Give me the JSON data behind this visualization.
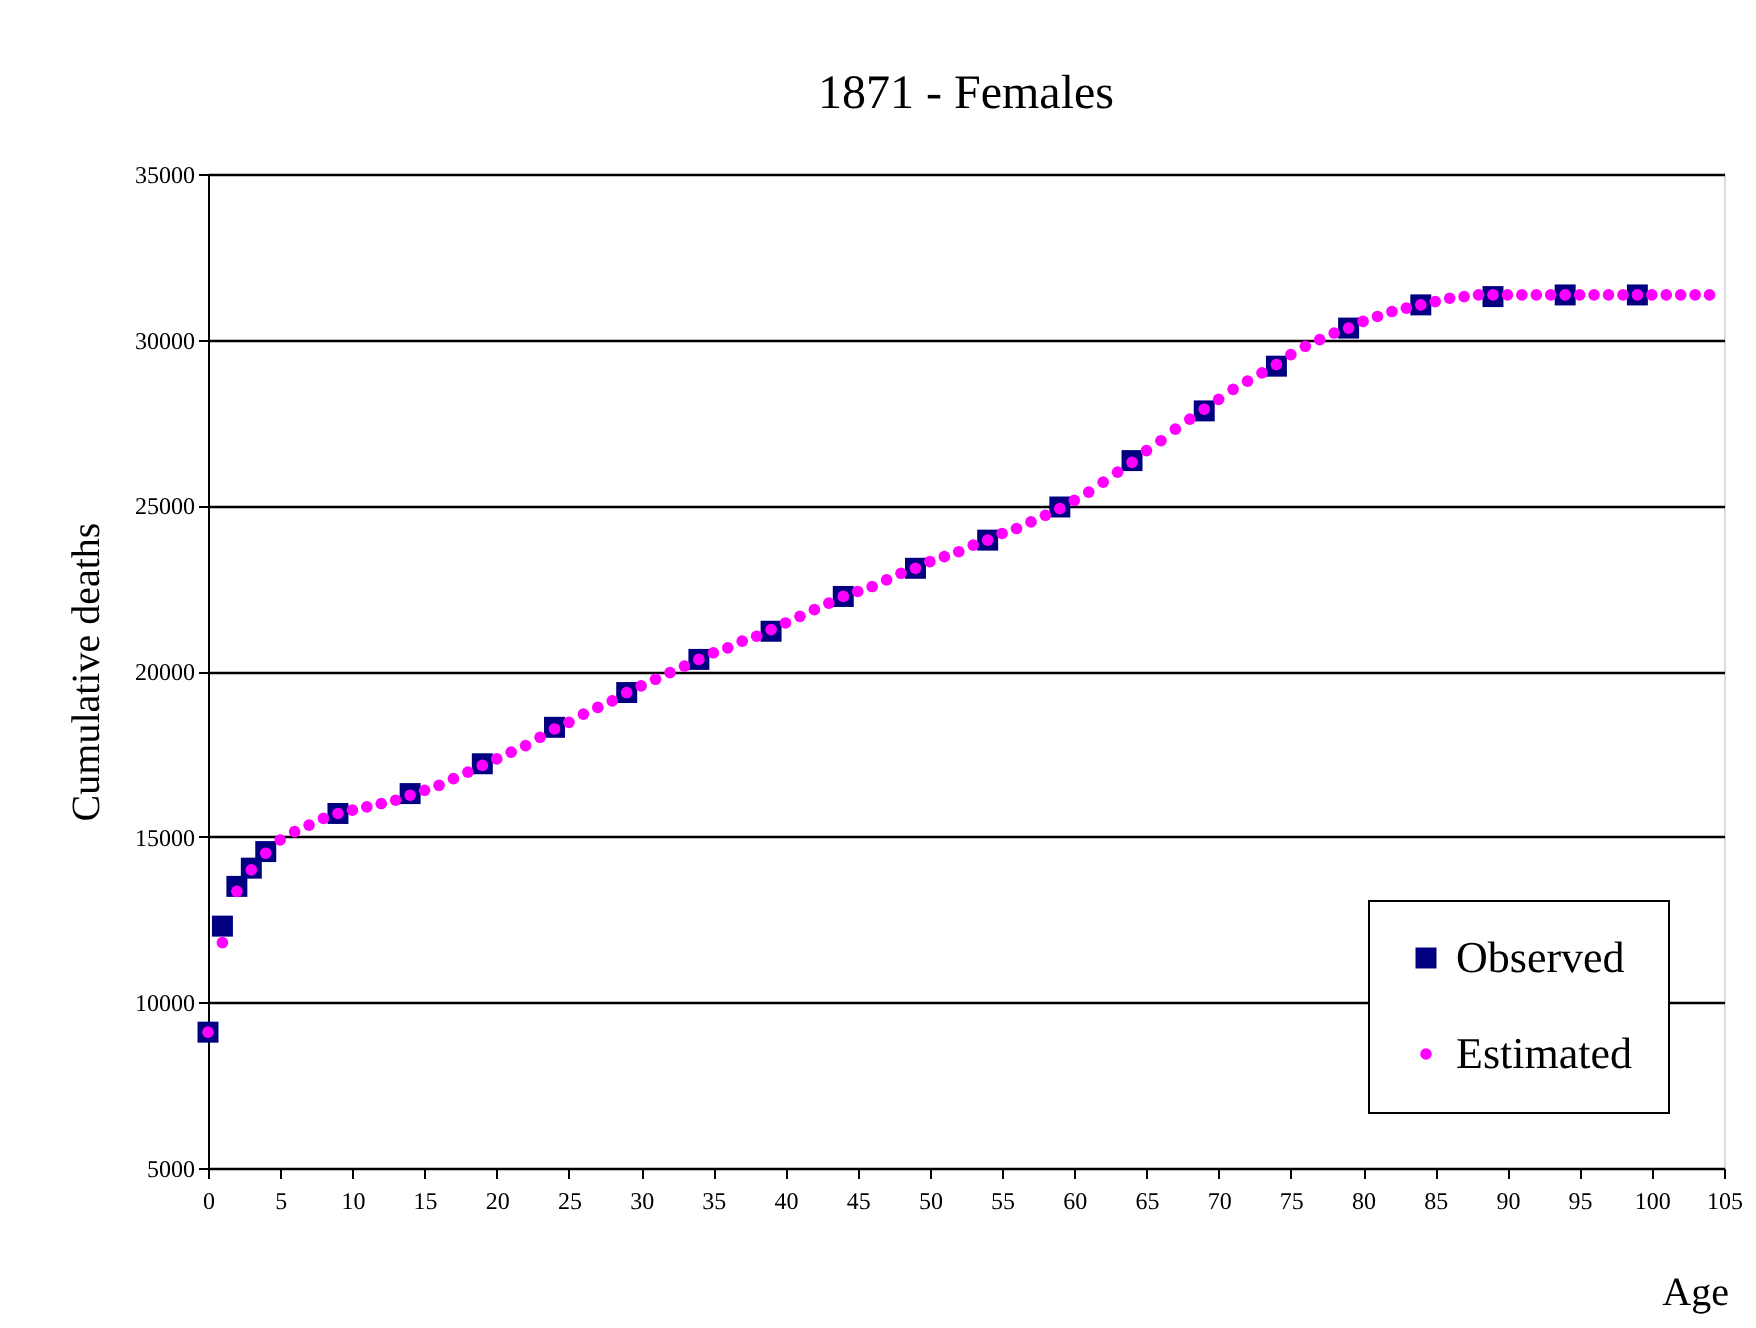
{
  "chart_data": {
    "type": "scatter",
    "title": "1871 - Females",
    "xlabel": "Age",
    "ylabel": "Cumulative deaths",
    "xlim": [
      0,
      105
    ],
    "xticks": [
      0,
      5,
      10,
      15,
      20,
      25,
      30,
      35,
      40,
      45,
      50,
      55,
      60,
      65,
      70,
      75,
      80,
      85,
      90,
      95,
      100,
      105
    ],
    "ylim": [
      5000,
      35000
    ],
    "yticks": [
      5000,
      10000,
      15000,
      20000,
      25000,
      30000,
      35000
    ],
    "grid": "y",
    "legend": "bottom right",
    "series": [
      {
        "name": "Observed",
        "color": "#000080",
        "marker": "square",
        "x": [
          0,
          1,
          2,
          3,
          4,
          9,
          14,
          19,
          24,
          29,
          34,
          39,
          44,
          49,
          54,
          59,
          64,
          69,
          74,
          79,
          84,
          89,
          94,
          99
        ],
        "values": [
          9100,
          12300,
          13500,
          14050,
          14550,
          15700,
          16300,
          17200,
          18300,
          19350,
          20350,
          21200,
          22250,
          23100,
          23950,
          24950,
          26350,
          27850,
          29200,
          30350,
          31050,
          31300,
          31350,
          31350
        ]
      },
      {
        "name": "Estimated",
        "color": "#ff00ff",
        "marker": "circle",
        "x": [
          0,
          1,
          2,
          3,
          4,
          5,
          6,
          7,
          8,
          9,
          10,
          11,
          12,
          13,
          14,
          15,
          16,
          17,
          18,
          19,
          20,
          21,
          22,
          23,
          24,
          25,
          26,
          27,
          28,
          29,
          30,
          31,
          32,
          33,
          34,
          35,
          36,
          37,
          38,
          39,
          40,
          41,
          42,
          43,
          44,
          45,
          46,
          47,
          48,
          49,
          50,
          51,
          52,
          53,
          54,
          55,
          56,
          57,
          58,
          59,
          60,
          61,
          62,
          63,
          64,
          65,
          66,
          67,
          68,
          69,
          70,
          71,
          72,
          73,
          74,
          75,
          76,
          77,
          78,
          79,
          80,
          81,
          82,
          83,
          84,
          85,
          86,
          87,
          88,
          89,
          90,
          91,
          92,
          93,
          94,
          95,
          96,
          97,
          98,
          99,
          100,
          101,
          102,
          103,
          104
        ],
        "values": [
          9100,
          11800,
          13350,
          14000,
          14500,
          14900,
          15150,
          15350,
          15550,
          15700,
          15800,
          15900,
          16000,
          16100,
          16250,
          16400,
          16550,
          16750,
          16950,
          17150,
          17350,
          17550,
          17750,
          18000,
          18250,
          18450,
          18700,
          18900,
          19100,
          19350,
          19550,
          19750,
          19950,
          20150,
          20350,
          20550,
          20700,
          20900,
          21050,
          21250,
          21450,
          21650,
          21850,
          22050,
          22250,
          22400,
          22550,
          22750,
          22950,
          23100,
          23300,
          23450,
          23600,
          23800,
          23950,
          24150,
          24300,
          24500,
          24700,
          24900,
          25150,
          25400,
          25700,
          26000,
          26300,
          26650,
          26950,
          27300,
          27600,
          27900,
          28200,
          28500,
          28750,
          29000,
          29250,
          29550,
          29800,
          30000,
          30200,
          30350,
          30550,
          30700,
          30850,
          30950,
          31050,
          31150,
          31250,
          31300,
          31350,
          31350,
          31350,
          31350,
          31350,
          31350,
          31350,
          31350,
          31350,
          31350,
          31350,
          31350,
          31350,
          31350,
          31350,
          31350,
          31350
        ]
      }
    ]
  }
}
